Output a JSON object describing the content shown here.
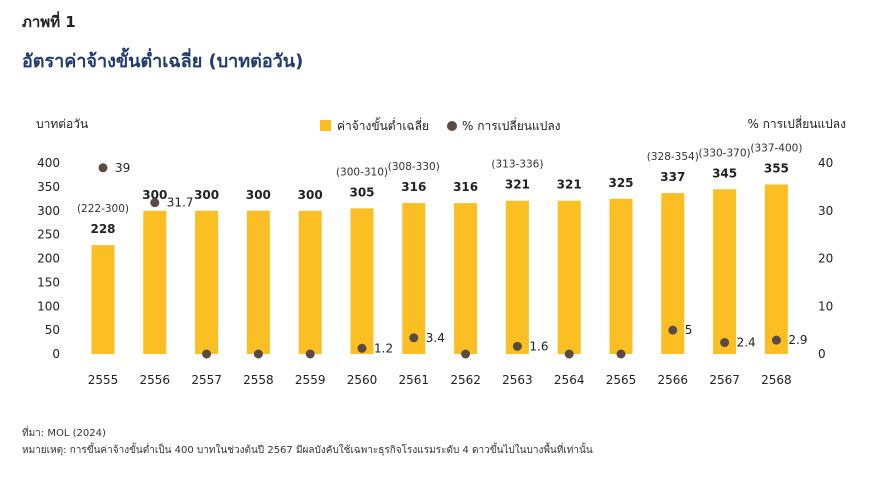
{
  "figure_label": "ภาพที่ 1",
  "title": "อัตราค่าจ้างขั้นต่ำเฉลี่ย (บาทต่อวัน)",
  "source": "ที่มา: MOL (2024)",
  "note": "หมายเหตุ: การขึ้นค่าจ้างขั้นต่ำเป็น 400 บาทในช่วงต้นปี 2567 มีผลบังคับใช้เฉพาะธุรกิจโรงแรมระดับ 4 ดาวขึ้นไปในบางพื้นที่เท่านั้น",
  "colors": {
    "bar": "#fbbf24",
    "dot": "#5b4a44",
    "title": "#1f3b6e"
  },
  "chart_data": {
    "type": "bar",
    "categories": [
      "2555",
      "2556",
      "2557",
      "2558",
      "2559",
      "2560",
      "2561",
      "2562",
      "2563",
      "2564",
      "2565",
      "2566",
      "2567",
      "2568"
    ],
    "series": [
      {
        "name": "ค่าจ้างขั้นต่ำเฉลี่ย",
        "type": "bar",
        "axis": "left",
        "values": [
          228,
          300,
          300,
          300,
          300,
          305,
          316,
          316,
          321,
          321,
          325,
          337,
          345,
          355
        ],
        "value_labels": [
          "228",
          "300",
          "300",
          "300",
          "300",
          "305",
          "316",
          "316",
          "321",
          "321",
          "325",
          "337",
          "345",
          "355"
        ],
        "range_labels": [
          "(222-300)",
          "",
          "",
          "",
          "",
          "(300-310)",
          "(308-330)",
          "",
          "(313-336)",
          "",
          "",
          "(328-354)",
          "(330-370)",
          "(337-400)"
        ]
      },
      {
        "name": "% การเปลี่ยนแปลง",
        "type": "scatter",
        "axis": "right",
        "values": [
          39,
          31.7,
          0,
          0,
          0,
          1.2,
          3.4,
          0,
          1.6,
          0,
          0,
          5,
          2.4,
          2.9
        ],
        "value_labels": [
          "39",
          "31.7",
          "",
          "",
          "",
          "1.2",
          "3.4",
          "",
          "1.6",
          "",
          "",
          "5",
          "2.4",
          "2.9"
        ]
      }
    ],
    "ylabel_left": "บาทต่อวัน",
    "ylabel_right": "% การเปลี่ยนแปลง",
    "ylim_left": [
      0,
      400
    ],
    "ylim_right": [
      0,
      40
    ],
    "yticks_left": [
      "0",
      "50",
      "100",
      "150",
      "200",
      "250",
      "300",
      "350",
      "400"
    ],
    "yticks_right": [
      "0",
      "10",
      "20",
      "30",
      "40"
    ],
    "grid": false,
    "legend_position": "top-center"
  }
}
